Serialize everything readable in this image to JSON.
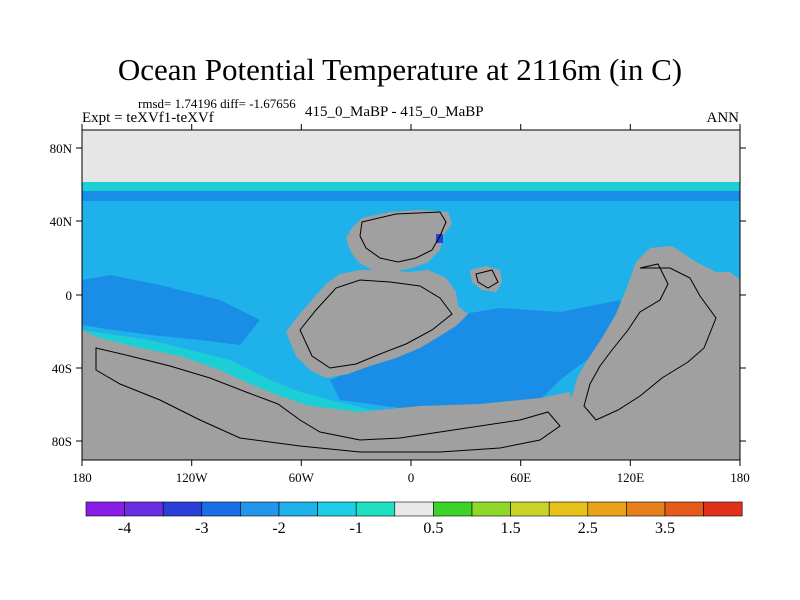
{
  "title": "Ocean Potential Temperature at 2116m (in C)",
  "stats": "rmsd= 1.74196 diff= -1.67656",
  "expt": "Expt = teXVf1-teXVf",
  "case": "415_0_MaBP - 415_0_MaBP",
  "season": "ANN",
  "lat_ticks": [
    "80N",
    "40N",
    "0",
    "40S",
    "80S"
  ],
  "lon_ticks": [
    "180",
    "120W",
    "60W",
    "0",
    "60E",
    "120E",
    "180"
  ],
  "colorbar": {
    "colors": [
      "#8b1ee6",
      "#6a2fe0",
      "#2a3fd8",
      "#1a6ee6",
      "#2396ec",
      "#1fb2ea",
      "#1ccfe6",
      "#1fe0c0",
      "#e8e8e8",
      "#3cd22a",
      "#8ed82a",
      "#c8d42a",
      "#e6c21a",
      "#e8a41a",
      "#e6801a",
      "#e65a1a",
      "#e0321a"
    ],
    "labels": [
      "-4",
      "-3",
      "-2",
      "-1",
      "0.5",
      "1.5",
      "2.5",
      "3.5"
    ]
  },
  "map_colors": {
    "land": "#a0a0a0",
    "ice": "#e6e6e6",
    "ocean": "#1fb2ea",
    "ocean_deep": "#1a8ee6",
    "band": "#1ccfd6",
    "anomaly": "#2a3fd8"
  }
}
